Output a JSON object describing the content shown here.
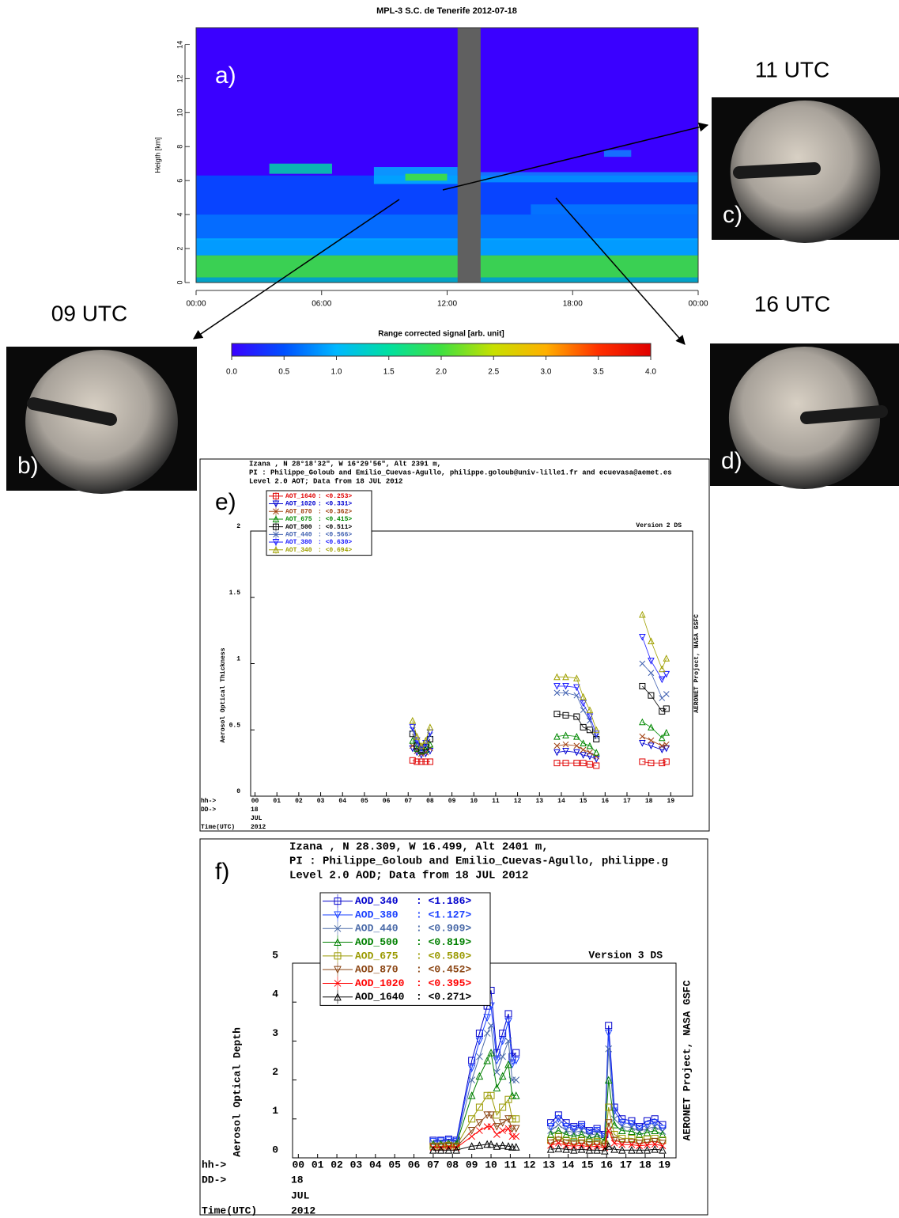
{
  "chart_data": [
    {
      "type": "heatmap",
      "title": "MPL-3 S.C. de Tenerife 2012-07-18",
      "panel_label": "a)",
      "y_label": "Heigth [km]",
      "xlim": [
        0,
        24
      ],
      "xticks": [
        {
          "value": 0,
          "label": "00:00"
        },
        {
          "value": 6,
          "label": "06:00"
        },
        {
          "value": 12,
          "label": "12:00"
        },
        {
          "value": 18,
          "label": "18:00"
        },
        {
          "value": 24,
          "label": "00:00"
        }
      ],
      "ylim": [
        0,
        15
      ],
      "yticks": [
        0,
        2,
        4,
        6,
        8,
        10,
        12,
        14
      ],
      "colorbar": {
        "label": "Range corrected signal [arb. unit]",
        "clim": [
          0,
          4
        ],
        "ticks": [
          {
            "value": 0,
            "label": "0.0"
          },
          {
            "value": 0.5,
            "label": "0.5"
          },
          {
            "value": 1,
            "label": "1.0"
          },
          {
            "value": 1.5,
            "label": "1.5"
          },
          {
            "value": 2,
            "label": "2.0"
          },
          {
            "value": 2.5,
            "label": "2.5"
          },
          {
            "value": 3,
            "label": "3.0"
          },
          {
            "value": 3.5,
            "label": "3.5"
          },
          {
            "value": 4,
            "label": "4.0"
          }
        ],
        "colormap": [
          "#3a00ff",
          "#0050ff",
          "#00b8ff",
          "#00e0a0",
          "#40e040",
          "#c8e000",
          "#ffb000",
          "#ff3000",
          "#e00000"
        ]
      }
    },
    {
      "type": "line",
      "panel_label": "e)",
      "header": [
        "Izana , N 28°18'32\", W 16°29'56\", Alt 2391 m,",
        "PI : Philippe_Goloub and Emilio_Cuevas-Agullo, philippe.goloub@univ-lille1.fr and ecuevasa@aemet.es",
        "Level 2.0 AOT; Data from 18 JUL 2012"
      ],
      "version": "Version 2 DS",
      "y_label": "Aerosol Optical Thickness",
      "right_label": "AERONET Project, NASA GSFC",
      "footer": {
        "hh": "hh->",
        "dd": "DD->",
        "day": "18",
        "month": "JUL",
        "time": "Time(UTC)",
        "year": "2012"
      },
      "xlim": [
        -0.2,
        20
      ],
      "xticks": [
        {
          "value": 0,
          "label": "00"
        },
        {
          "value": 1,
          "label": "01"
        },
        {
          "value": 2,
          "label": "02"
        },
        {
          "value": 3,
          "label": "03"
        },
        {
          "value": 4,
          "label": "04"
        },
        {
          "value": 5,
          "label": "05"
        },
        {
          "value": 6,
          "label": "06"
        },
        {
          "value": 7,
          "label": "07"
        },
        {
          "value": 8,
          "label": "08"
        },
        {
          "value": 9,
          "label": "09"
        },
        {
          "value": 10,
          "label": "10"
        },
        {
          "value": 11,
          "label": "11"
        },
        {
          "value": 12,
          "label": "12"
        },
        {
          "value": 13,
          "label": "13"
        },
        {
          "value": 14,
          "label": "14"
        },
        {
          "value": 15,
          "label": "15"
        },
        {
          "value": 16,
          "label": "16"
        },
        {
          "value": 17,
          "label": "17"
        },
        {
          "value": 18,
          "label": "18"
        },
        {
          "value": 19,
          "label": "19"
        }
      ],
      "ylim": [
        0,
        2
      ],
      "yticks": [
        0,
        0.5,
        1,
        1.5,
        2
      ],
      "x": [
        7.2,
        7.4,
        7.6,
        7.8,
        8.0,
        11,
        13.8,
        14.2,
        14.7,
        15.0,
        15.3,
        15.6,
        16.5,
        17.7,
        18.1,
        18.6,
        18.8
      ],
      "series": [
        {
          "name": "AOT_1640",
          "mean": ": <0.253>",
          "color": "#e00000",
          "marker": "square",
          "values": [
            0.27,
            0.26,
            0.26,
            0.26,
            0.26,
            null,
            0.25,
            0.25,
            0.25,
            0.25,
            0.24,
            0.23,
            null,
            0.26,
            0.25,
            0.25,
            0.26
          ]
        },
        {
          "name": "AOT_1020",
          "mean": ": <0.331>",
          "color": "#0000d0",
          "marker": "down",
          "values": [
            0.36,
            0.33,
            0.31,
            0.32,
            0.34,
            null,
            0.33,
            0.34,
            0.33,
            0.31,
            0.3,
            0.28,
            null,
            0.4,
            0.38,
            0.35,
            0.36
          ]
        },
        {
          "name": "AOT_870",
          "mean": ": <0.362>",
          "color": "#a04010",
          "marker": "x",
          "values": [
            0.38,
            0.34,
            0.32,
            0.33,
            0.36,
            null,
            0.38,
            0.39,
            0.38,
            0.35,
            0.33,
            0.3,
            null,
            0.45,
            0.42,
            0.38,
            0.39
          ]
        },
        {
          "name": "AOT_675",
          "mean": ": <0.415>",
          "color": "#008800",
          "marker": "up",
          "values": [
            0.42,
            0.36,
            0.34,
            0.35,
            0.39,
            null,
            0.45,
            0.46,
            0.45,
            0.4,
            0.38,
            0.33,
            null,
            0.56,
            0.52,
            0.44,
            0.48
          ]
        },
        {
          "name": "AOT_500",
          "mean": ": <0.511>",
          "color": "#000000",
          "marker": "square",
          "values": [
            0.47,
            0.38,
            0.35,
            0.37,
            0.43,
            null,
            0.62,
            0.61,
            0.6,
            0.52,
            0.5,
            0.43,
            null,
            0.83,
            0.76,
            0.64,
            0.66
          ]
        },
        {
          "name": "AOT_440",
          "mean": ": <0.566>",
          "color": "#4060b0",
          "marker": "x",
          "values": [
            0.5,
            0.4,
            0.35,
            0.38,
            0.46,
            null,
            0.78,
            0.78,
            0.76,
            0.65,
            0.57,
            0.45,
            null,
            1.0,
            0.93,
            0.74,
            0.77
          ]
        },
        {
          "name": "AOT_380",
          "mean": ": <0.630>",
          "color": "#1a1aff",
          "marker": "down",
          "values": [
            0.52,
            0.42,
            0.36,
            0.4,
            0.48,
            null,
            0.83,
            0.83,
            0.82,
            0.7,
            0.6,
            0.47,
            null,
            1.2,
            1.02,
            0.88,
            0.92
          ]
        },
        {
          "name": "AOT_340",
          "mean": ": <0.694>",
          "color": "#a0a000",
          "marker": "up",
          "values": [
            0.57,
            0.45,
            0.38,
            0.42,
            0.52,
            null,
            0.9,
            0.9,
            0.89,
            0.75,
            0.65,
            0.5,
            null,
            1.37,
            1.17,
            0.96,
            1.04
          ]
        }
      ]
    },
    {
      "type": "line",
      "panel_label": "f)",
      "header": [
        "Izana , N 28.309, W  16.499, Alt 2401 m,",
        "PI : Philippe_Goloub and Emilio_Cuevas-Agullo, philippe.g",
        "Level 2.0 AOD; Data from 18 JUL 2012"
      ],
      "version": "Version 3 DS",
      "y_label": "Aerosol Optical Depth",
      "right_label": "AERONET Project, NASA GSFC",
      "footer": {
        "hh": "hh->",
        "dd": "DD->",
        "day": "18",
        "month": "JUL",
        "time": "Time(UTC)",
        "year": "2012"
      },
      "xlim": [
        -0.3,
        19.6
      ],
      "xticks": [
        {
          "value": 0,
          "label": "00"
        },
        {
          "value": 1,
          "label": "01"
        },
        {
          "value": 2,
          "label": "02"
        },
        {
          "value": 3,
          "label": "03"
        },
        {
          "value": 4,
          "label": "04"
        },
        {
          "value": 5,
          "label": "05"
        },
        {
          "value": 6,
          "label": "06"
        },
        {
          "value": 7,
          "label": "07"
        },
        {
          "value": 8,
          "label": "08"
        },
        {
          "value": 9,
          "label": "09"
        },
        {
          "value": 10,
          "label": "10"
        },
        {
          "value": 11,
          "label": "11"
        },
        {
          "value": 12,
          "label": "12"
        },
        {
          "value": 13,
          "label": "13"
        },
        {
          "value": 14,
          "label": "14"
        },
        {
          "value": 15,
          "label": "15"
        },
        {
          "value": 16,
          "label": "16"
        },
        {
          "value": 17,
          "label": "17"
        },
        {
          "value": 18,
          "label": "18"
        },
        {
          "value": 19,
          "label": "19"
        }
      ],
      "ylim": [
        0,
        5
      ],
      "yticks": [
        0,
        1,
        2,
        3,
        4,
        5
      ],
      "x": [
        7.0,
        7.4,
        7.8,
        8.2,
        9.0,
        9.4,
        9.8,
        10.0,
        10.3,
        10.6,
        10.9,
        11.1,
        11.3,
        12.2,
        13.1,
        13.5,
        13.9,
        14.3,
        14.7,
        15.1,
        15.5,
        15.9,
        16.1,
        16.4,
        16.8,
        17.3,
        17.7,
        18.1,
        18.5,
        18.9
      ],
      "series": [
        {
          "name": "AOD_340",
          "mean": ": <1.186>",
          "color": "#0000cc",
          "marker": "square",
          "values": [
            0.45,
            0.45,
            0.48,
            0.45,
            2.5,
            3.2,
            3.9,
            4.3,
            2.7,
            3.2,
            3.7,
            2.6,
            2.7,
            null,
            0.9,
            1.1,
            0.9,
            0.8,
            0.85,
            0.7,
            0.75,
            0.6,
            3.4,
            1.3,
            1.0,
            0.95,
            0.8,
            0.95,
            1.0,
            0.85
          ]
        },
        {
          "name": "AOD_380",
          "mean": ": <1.127>",
          "color": "#1a40ff",
          "marker": "down",
          "values": [
            0.42,
            0.43,
            0.45,
            0.42,
            2.3,
            3.0,
            3.6,
            3.9,
            2.5,
            3.0,
            3.5,
            2.4,
            2.5,
            null,
            0.8,
            1.0,
            0.8,
            0.75,
            0.8,
            0.65,
            0.7,
            0.55,
            3.2,
            1.2,
            0.9,
            0.88,
            0.75,
            0.85,
            0.9,
            0.75
          ]
        },
        {
          "name": "AOD_440",
          "mean": ": <0.909>",
          "color": "#4a6aa8",
          "marker": "x",
          "values": [
            0.38,
            0.38,
            0.4,
            0.38,
            2.0,
            2.6,
            3.2,
            3.4,
            2.2,
            2.6,
            3.0,
            2.0,
            2.0,
            null,
            0.7,
            0.85,
            0.7,
            0.65,
            0.7,
            0.58,
            0.62,
            0.5,
            2.8,
            1.0,
            0.8,
            0.78,
            0.68,
            0.75,
            0.8,
            0.68
          ]
        },
        {
          "name": "AOD_500",
          "mean": ": <0.819>",
          "color": "#008000",
          "marker": "up",
          "values": [
            0.35,
            0.35,
            0.37,
            0.35,
            1.6,
            2.1,
            2.5,
            2.7,
            1.8,
            2.1,
            2.4,
            1.6,
            1.6,
            null,
            0.6,
            0.7,
            0.6,
            0.55,
            0.6,
            0.5,
            0.55,
            0.45,
            2.0,
            0.85,
            0.7,
            0.68,
            0.6,
            0.65,
            0.7,
            0.6
          ]
        },
        {
          "name": "AOD_675",
          "mean": ": <0.580>",
          "color": "#9a9a00",
          "marker": "square",
          "values": [
            0.3,
            0.3,
            0.32,
            0.3,
            1.0,
            1.3,
            1.6,
            1.6,
            1.1,
            1.3,
            1.5,
            1.0,
            1.0,
            null,
            0.45,
            0.55,
            0.45,
            0.42,
            0.45,
            0.4,
            0.42,
            0.35,
            1.3,
            0.6,
            0.5,
            0.5,
            0.45,
            0.48,
            0.5,
            0.45
          ]
        },
        {
          "name": "AOD_870",
          "mean": ": <0.452>",
          "color": "#8b4513",
          "marker": "down",
          "values": [
            0.28,
            0.28,
            0.3,
            0.28,
            0.7,
            0.9,
            1.1,
            1.1,
            0.8,
            0.9,
            1.0,
            0.75,
            0.75,
            null,
            0.38,
            0.45,
            0.38,
            0.35,
            0.38,
            0.33,
            0.35,
            0.3,
            0.9,
            0.45,
            0.4,
            0.4,
            0.37,
            0.4,
            0.42,
            0.37
          ]
        },
        {
          "name": "AOD_1020",
          "mean": ": <0.395>",
          "color": "#ff0000",
          "marker": "x",
          "values": [
            0.26,
            0.26,
            0.27,
            0.26,
            0.55,
            0.7,
            0.8,
            0.8,
            0.6,
            0.7,
            0.75,
            0.55,
            0.55,
            null,
            0.32,
            0.38,
            0.32,
            0.3,
            0.32,
            0.28,
            0.3,
            0.26,
            0.7,
            0.38,
            0.34,
            0.34,
            0.31,
            0.33,
            0.35,
            0.31
          ]
        },
        {
          "name": "AOD_1640",
          "mean": ": <0.271>",
          "color": "#000000",
          "marker": "up",
          "values": [
            0.2,
            0.2,
            0.2,
            0.2,
            0.3,
            0.32,
            0.35,
            0.35,
            0.3,
            0.32,
            0.3,
            0.28,
            0.28,
            null,
            0.22,
            0.24,
            0.22,
            0.2,
            0.22,
            0.2,
            0.2,
            0.18,
            0.3,
            0.22,
            0.2,
            0.2,
            0.2,
            0.2,
            0.22,
            0.2
          ]
        }
      ]
    }
  ],
  "images": [
    {
      "time": "09 UTC",
      "label": "b)"
    },
    {
      "time": "11 UTC",
      "label": "c)"
    },
    {
      "time": "16 UTC",
      "label": "d)"
    }
  ]
}
